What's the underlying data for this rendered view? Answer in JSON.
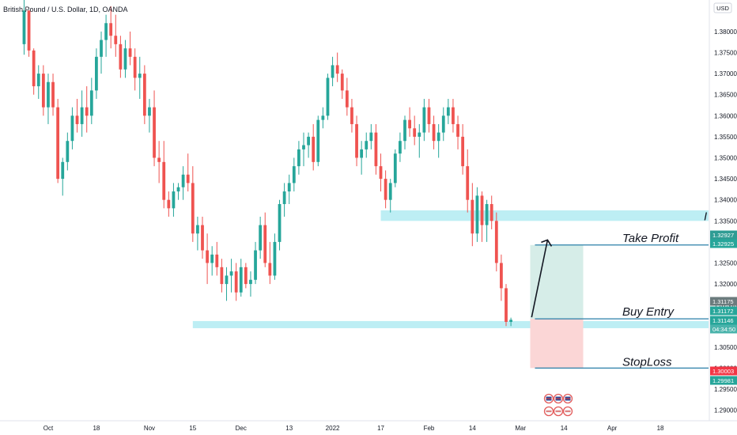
{
  "header": {
    "symbol_title": "British Pound / U.S. Dollar, 1D, OANDA",
    "currency": "USD"
  },
  "colors": {
    "up": "#26a69a",
    "down": "#ef5350",
    "zone": "#b2ebf2",
    "profit_zone": "#d6ede8",
    "loss_zone": "#fbd6d6"
  },
  "chart_data": {
    "type": "candlestick",
    "title": "British Pound / U.S. Dollar, 1D, OANDA",
    "ylabel": "USD",
    "ylim": [
      1.2875,
      1.3875
    ],
    "y_ticks": [
      "1.38000",
      "1.37500",
      "1.37000",
      "1.36500",
      "1.36000",
      "1.35500",
      "1.35000",
      "1.34500",
      "1.34000",
      "1.33500",
      "1.33000",
      "1.32500",
      "1.32000",
      "1.31500",
      "1.31000",
      "1.30500",
      "1.30000",
      "1.29500",
      "1.29000"
    ],
    "x_ticks": [
      "Oct",
      "18",
      "Nov",
      "15",
      "Dec",
      "13",
      "2022",
      "17",
      "Feb",
      "14",
      "Mar",
      "14",
      "Apr",
      "18"
    ],
    "x_tick_index": [
      5,
      15,
      26,
      35,
      45,
      55,
      64,
      74,
      84,
      93,
      103,
      112,
      122,
      132
    ],
    "x_range": [
      -5,
      142
    ],
    "candles": [
      [
        1.377,
        1.3875,
        1.3745,
        1.385
      ],
      [
        1.385,
        1.385,
        1.374,
        1.3755
      ],
      [
        1.3755,
        1.376,
        1.365,
        1.367
      ],
      [
        1.367,
        1.372,
        1.364,
        1.37
      ],
      [
        1.37,
        1.372,
        1.36,
        1.362
      ],
      [
        1.362,
        1.37,
        1.358,
        1.368
      ],
      [
        1.368,
        1.37,
        1.36,
        1.362
      ],
      [
        1.362,
        1.364,
        1.344,
        1.345
      ],
      [
        1.345,
        1.35,
        1.341,
        1.349
      ],
      [
        1.349,
        1.356,
        1.347,
        1.354
      ],
      [
        1.354,
        1.362,
        1.352,
        1.36
      ],
      [
        1.36,
        1.364,
        1.356,
        1.358
      ],
      [
        1.358,
        1.366,
        1.355,
        1.362
      ],
      [
        1.362,
        1.367,
        1.356,
        1.36
      ],
      [
        1.36,
        1.369,
        1.358,
        1.366
      ],
      [
        1.366,
        1.376,
        1.364,
        1.374
      ],
      [
        1.374,
        1.38,
        1.37,
        1.378
      ],
      [
        1.378,
        1.384,
        1.374,
        1.382
      ],
      [
        1.382,
        1.386,
        1.376,
        1.379
      ],
      [
        1.379,
        1.384,
        1.374,
        1.377
      ],
      [
        1.377,
        1.379,
        1.369,
        1.371
      ],
      [
        1.371,
        1.378,
        1.369,
        1.376
      ],
      [
        1.376,
        1.38,
        1.372,
        1.374
      ],
      [
        1.374,
        1.376,
        1.366,
        1.369
      ],
      [
        1.369,
        1.374,
        1.364,
        1.37
      ],
      [
        1.37,
        1.372,
        1.358,
        1.36
      ],
      [
        1.36,
        1.364,
        1.356,
        1.362
      ],
      [
        1.362,
        1.366,
        1.348,
        1.35
      ],
      [
        1.35,
        1.354,
        1.344,
        1.349
      ],
      [
        1.349,
        1.354,
        1.338,
        1.34
      ],
      [
        1.34,
        1.342,
        1.336,
        1.338
      ],
      [
        1.338,
        1.344,
        1.336,
        1.342
      ],
      [
        1.342,
        1.344,
        1.34,
        1.343
      ],
      [
        1.343,
        1.348,
        1.34,
        1.346
      ],
      [
        1.346,
        1.351,
        1.342,
        1.344
      ],
      [
        1.344,
        1.348,
        1.33,
        1.332
      ],
      [
        1.332,
        1.336,
        1.328,
        1.334
      ],
      [
        1.334,
        1.336,
        1.326,
        1.328
      ],
      [
        1.328,
        1.332,
        1.32,
        1.325
      ],
      [
        1.325,
        1.329,
        1.322,
        1.327
      ],
      [
        1.327,
        1.33,
        1.322,
        1.324
      ],
      [
        1.324,
        1.326,
        1.318,
        1.32
      ],
      [
        1.32,
        1.324,
        1.316,
        1.322
      ],
      [
        1.322,
        1.326,
        1.318,
        1.323
      ],
      [
        1.323,
        1.325,
        1.316,
        1.318
      ],
      [
        1.318,
        1.326,
        1.317,
        1.324
      ],
      [
        1.324,
        1.325,
        1.319,
        1.32
      ],
      [
        1.32,
        1.323,
        1.317,
        1.321
      ],
      [
        1.321,
        1.33,
        1.32,
        1.328
      ],
      [
        1.328,
        1.336,
        1.326,
        1.334
      ],
      [
        1.334,
        1.337,
        1.324,
        1.325
      ],
      [
        1.325,
        1.33,
        1.32,
        1.322
      ],
      [
        1.322,
        1.332,
        1.321,
        1.33
      ],
      [
        1.33,
        1.34,
        1.328,
        1.339
      ],
      [
        1.339,
        1.344,
        1.336,
        1.342
      ],
      [
        1.342,
        1.346,
        1.339,
        1.344
      ],
      [
        1.344,
        1.35,
        1.342,
        1.348
      ],
      [
        1.348,
        1.354,
        1.346,
        1.352
      ],
      [
        1.352,
        1.356,
        1.348,
        1.353
      ],
      [
        1.353,
        1.356,
        1.35,
        1.355
      ],
      [
        1.355,
        1.358,
        1.347,
        1.349
      ],
      [
        1.349,
        1.36,
        1.348,
        1.359
      ],
      [
        1.359,
        1.362,
        1.357,
        1.36
      ],
      [
        1.36,
        1.37,
        1.359,
        1.369
      ],
      [
        1.369,
        1.374,
        1.367,
        1.372
      ],
      [
        1.372,
        1.375,
        1.368,
        1.37
      ],
      [
        1.37,
        1.371,
        1.364,
        1.366
      ],
      [
        1.366,
        1.369,
        1.36,
        1.362
      ],
      [
        1.362,
        1.364,
        1.356,
        1.358
      ],
      [
        1.358,
        1.36,
        1.348,
        1.35
      ],
      [
        1.35,
        1.354,
        1.346,
        1.352
      ],
      [
        1.352,
        1.356,
        1.35,
        1.354
      ],
      [
        1.354,
        1.358,
        1.352,
        1.356
      ],
      [
        1.356,
        1.358,
        1.346,
        1.348
      ],
      [
        1.348,
        1.351,
        1.342,
        1.345
      ],
      [
        1.345,
        1.347,
        1.338,
        1.34
      ],
      [
        1.34,
        1.345,
        1.337,
        1.344
      ],
      [
        1.344,
        1.352,
        1.343,
        1.351
      ],
      [
        1.351,
        1.356,
        1.349,
        1.354
      ],
      [
        1.354,
        1.36,
        1.352,
        1.359
      ],
      [
        1.359,
        1.362,
        1.355,
        1.357
      ],
      [
        1.357,
        1.36,
        1.353,
        1.355
      ],
      [
        1.355,
        1.358,
        1.35,
        1.356
      ],
      [
        1.356,
        1.364,
        1.354,
        1.362
      ],
      [
        1.362,
        1.364,
        1.356,
        1.358
      ],
      [
        1.358,
        1.36,
        1.352,
        1.354
      ],
      [
        1.354,
        1.358,
        1.35,
        1.356
      ],
      [
        1.356,
        1.362,
        1.354,
        1.36
      ],
      [
        1.36,
        1.364,
        1.358,
        1.362
      ],
      [
        1.362,
        1.364,
        1.356,
        1.358
      ],
      [
        1.358,
        1.36,
        1.352,
        1.355
      ],
      [
        1.355,
        1.358,
        1.346,
        1.348
      ],
      [
        1.348,
        1.352,
        1.337,
        1.34
      ],
      [
        1.34,
        1.344,
        1.329,
        1.332
      ],
      [
        1.332,
        1.343,
        1.33,
        1.341
      ],
      [
        1.341,
        1.342,
        1.33,
        1.334
      ],
      [
        1.334,
        1.34,
        1.33,
        1.339
      ],
      [
        1.339,
        1.341,
        1.333,
        1.335
      ],
      [
        1.335,
        1.337,
        1.323,
        1.325
      ],
      [
        1.325,
        1.327,
        1.316,
        1.319
      ],
      [
        1.319,
        1.32,
        1.31,
        1.311
      ],
      [
        1.311,
        1.312,
        1.31,
        1.3115
      ]
    ],
    "levels": [
      {
        "label": "1.32927",
        "value": 1.32927,
        "color": "#2f9c94"
      },
      {
        "label": "1.32925",
        "value": 1.32925,
        "color": "#26a69a"
      },
      {
        "label": "1.31175",
        "value": 1.31175,
        "color": "#6b7b7d"
      },
      {
        "label": "1.31172",
        "value": 1.31172,
        "color": "#26a69a"
      },
      {
        "label": "1.31146",
        "value": 1.31146,
        "color": "#26a69a"
      },
      {
        "label": "04:34:50",
        "value": 1.31146,
        "color": "#4ab3ab"
      },
      {
        "label": "1.30003",
        "value": 1.30003,
        "color": "#f23645"
      },
      {
        "label": "1.29981",
        "value": 1.29981,
        "color": "#26a69a"
      }
    ],
    "zones": [
      {
        "from": 1.335,
        "to": 1.3375,
        "x_start": 74
      },
      {
        "from": 1.3095,
        "to": 1.3112,
        "x_start": 35
      }
    ],
    "position": {
      "entry": 1.31172,
      "target": 1.32927,
      "stop": 1.30003,
      "x_start": 105,
      "x_end": 116
    },
    "annotations": {
      "take_profit": "Take Profit",
      "buy_entry": "Buy Entry",
      "stop_loss": "StopLoss",
      "edge_letter": "I"
    },
    "legend": null,
    "grid": false
  }
}
